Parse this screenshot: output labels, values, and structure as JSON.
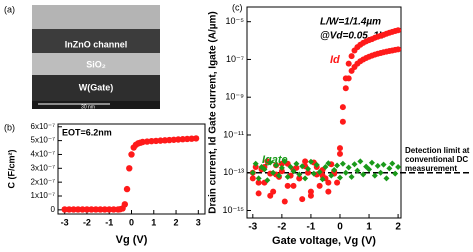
{
  "image_panel": {
    "label": "(a)",
    "layers": [
      "InZnO channel",
      "SiO₂",
      "W(Gate)"
    ],
    "scale_bar": "30 nm"
  },
  "chart_data": [
    {
      "type": "scatter",
      "label": "(b)",
      "annotation": "EOT=6.2nm",
      "xlabel": "Vg (V)",
      "ylabel": "C (F/cm²)",
      "series": [
        {
          "color": "#ff1a1a",
          "x": [
            -3,
            -2.8,
            -2.6,
            -2.4,
            -2.2,
            -2,
            -1.8,
            -1.6,
            -1.4,
            -1.2,
            -1,
            -0.8,
            -0.6,
            -0.5,
            -0.4,
            -0.3,
            -0.2,
            -0.1,
            0,
            0.1,
            0.2,
            0.3,
            0.4,
            0.5,
            0.7,
            0.9,
            1.1,
            1.3,
            1.5,
            1.7,
            1.9,
            2.1,
            2.3,
            2.5,
            2.7,
            2.9
          ],
          "values": [
            3e-09,
            3e-09,
            3e-09,
            3e-09,
            3e-09,
            3e-09,
            3e-09,
            3e-09,
            3e-09,
            3e-09,
            3e-09,
            3e-09,
            3e-09,
            5e-09,
            1e-08,
            4e-08,
            1.5e-07,
            3e-07,
            4e-07,
            4.5e-07,
            4.7e-07,
            4.8e-07,
            4.85e-07,
            4.9e-07,
            4.93e-07,
            4.96e-07,
            4.98e-07,
            5e-07,
            5.02e-07,
            5.04e-07,
            5.06e-07,
            5.08e-07,
            5.1e-07,
            5.12e-07,
            5.14e-07,
            5.16e-07
          ]
        }
      ],
      "xlim": [
        -3.3,
        3.3
      ],
      "xticks": [
        -3,
        -2,
        -1,
        0,
        1,
        2,
        3
      ],
      "ylim": [
        -3e-08,
        6.2e-07
      ],
      "yticks": [
        0,
        {
          "value": 1e-07,
          "label": "1x10⁻⁷"
        },
        {
          "value": 2e-07,
          "label": "2x10⁻⁷"
        },
        {
          "value": 3e-07,
          "label": "3x10⁻⁷"
        },
        {
          "value": 4e-07,
          "label": "4x10⁻⁷"
        },
        {
          "value": 5e-07,
          "label": "5x10⁻⁷"
        },
        {
          "value": 6e-07,
          "label": "6x10⁻⁷"
        }
      ]
    },
    {
      "type": "scatter",
      "label": "(c)",
      "log_y": true,
      "annotations": [
        "L/W=1/1.4µm",
        "@Vd=0.05, 1V"
      ],
      "xlabel": "Gate voltage, Vg (V)",
      "ylabel": "Drain current, Id Gate current, Igate (A/µm)",
      "detection_limit": {
        "value": 1e-13,
        "label": [
          "Detection limit at",
          "conventional DC",
          "measurement"
        ]
      },
      "series": [
        {
          "name": "Id",
          "color": "#ff1a1a",
          "x": [
            -3,
            -2.9,
            -2.8,
            -2.7,
            -2.6,
            -2.5,
            -2.4,
            -2.3,
            -2.2,
            -2.1,
            -2,
            -1.9,
            -1.8,
            -1.7,
            -1.6,
            -1.5,
            -1.4,
            -1.3,
            -1.2,
            -1.1,
            -1,
            -0.9,
            -0.8,
            -0.7,
            -0.6,
            -0.5,
            -0.4,
            -0.3,
            -0.2,
            -0.1,
            0,
            0.1,
            0.2,
            0.3,
            0.4,
            0.5,
            0.6,
            0.7,
            0.8,
            0.9,
            1,
            1.1,
            1.2,
            1.3,
            1.4,
            1.5,
            1.6,
            1.7,
            1.8,
            1.9,
            2,
            null,
            -3,
            -2.8,
            -2.6,
            -2.4,
            -2.2,
            -2,
            -1.8,
            -1.6,
            -1.4,
            -1.2,
            -1,
            -0.8,
            -0.6,
            -0.4,
            -0.2,
            0,
            0.1,
            0.2,
            0.3,
            0.4,
            0.5,
            0.6,
            0.7,
            0.8,
            0.9,
            1,
            1.1,
            1.2,
            1.3,
            1.4,
            1.5,
            1.6,
            1.7,
            1.8,
            1.9,
            2
          ],
          "values": [
            5e-14,
            2e-13,
            8e-15,
            1.5e-13,
            3e-14,
            4e-13,
            9e-14,
            1e-14,
            2.5e-13,
            6e-14,
            1.2e-13,
            3e-15,
            3e-13,
            7e-14,
            2e-14,
            1.8e-13,
            5e-14,
            4e-15,
            2.2e-13,
            1e-13,
            6e-15,
            3.5e-13,
            8e-14,
            2e-14,
            1.4e-13,
            5e-14,
            1e-14,
            2.8e-13,
            9e-14,
            3e-14,
            2e-12,
            3e-10,
            1e-08,
            6e-08,
            1.5e-07,
            3e-07,
            4.5e-07,
            6e-07,
            7.5e-07,
            9e-07,
            1.05e-06,
            1.2e-06,
            1.4e-06,
            1.6e-06,
            1.8e-06,
            2e-06,
            2.3e-06,
            2.6e-06,
            2.9e-06,
            3.2e-06,
            3.5e-06,
            null,
            1e-13,
            3e-14,
            2e-13,
            6e-15,
            8e-14,
            3e-13,
            2e-14,
            1.5e-13,
            5e-14,
            4e-13,
            1e-14,
            2e-13,
            7e-14,
            3e-14,
            1.2e-13,
            1e-12,
            5e-11,
            3e-09,
            1e-08,
            2.5e-08,
            4e-08,
            6e-08,
            8e-08,
            1e-07,
            1.2e-07,
            1.4e-07,
            1.6e-07,
            1.8e-07,
            2e-07,
            2.2e-07,
            2.4e-07,
            2.6e-07,
            2.8e-07,
            3e-07,
            3.2e-07,
            3.4e-07
          ]
        },
        {
          "name": "Igate",
          "color": "#1a9a1a",
          "x": [
            -3,
            -2.9,
            -2.8,
            -2.7,
            -2.6,
            -2.5,
            -2.4,
            -2.3,
            -2.2,
            -2.1,
            -2,
            -1.9,
            -1.8,
            -1.7,
            -1.6,
            -1.5,
            -1.4,
            -1.3,
            -1.2,
            -1.1,
            -1,
            -0.9,
            -0.8,
            -0.7,
            -0.6,
            -0.5,
            -0.4,
            -0.3,
            -0.2,
            -0.1,
            0,
            0.1,
            0.2,
            0.3,
            0.4,
            0.5,
            0.6,
            0.7,
            0.8,
            0.9,
            1,
            1.1,
            1.2,
            1.3,
            1.4,
            1.5,
            1.6,
            1.7,
            1.8,
            1.9,
            2
          ],
          "values": [
            1e-13,
            3e-13,
            5e-14,
            2e-13,
            1.5e-13,
            4e-14,
            3.5e-13,
            1e-13,
            2.5e-13,
            7e-14,
            1.8e-13,
            4e-13,
            6e-14,
            2e-13,
            1.2e-13,
            3e-13,
            8e-14,
            2.2e-13,
            5e-14,
            1.6e-13,
            3.8e-13,
            9e-14,
            2.6e-13,
            1.1e-13,
            4.5e-14,
            2e-13,
            3.2e-13,
            7e-14,
            1.4e-13,
            2.4e-13,
            5.5e-14,
            3e-13,
            1e-13,
            1.9e-13,
            6e-14,
            2.8e-13,
            1.3e-13,
            4e-13,
            8e-14,
            2.1e-13,
            1.5e-13,
            3.4e-13,
            7e-14,
            2.3e-13,
            1e-13,
            2.7e-13,
            5e-14,
            1.7e-13,
            3.1e-13,
            9e-14,
            2e-13
          ]
        }
      ],
      "xlim": [
        -3.2,
        2.1
      ],
      "xticks": [
        -3,
        -2,
        -1,
        0,
        1,
        2
      ],
      "ylim": [
        4e-16,
        6e-05
      ],
      "yticks": [
        {
          "value": 1e-15,
          "label": "10⁻¹⁵"
        },
        {
          "value": 1e-13,
          "label": "10⁻¹³"
        },
        {
          "value": 1e-11,
          "label": "10⁻¹¹"
        },
        {
          "value": 1e-09,
          "label": "10⁻⁹"
        },
        {
          "value": 1e-07,
          "label": "10⁻⁷"
        },
        {
          "value": 1e-05,
          "label": "10⁻⁵"
        }
      ]
    }
  ]
}
